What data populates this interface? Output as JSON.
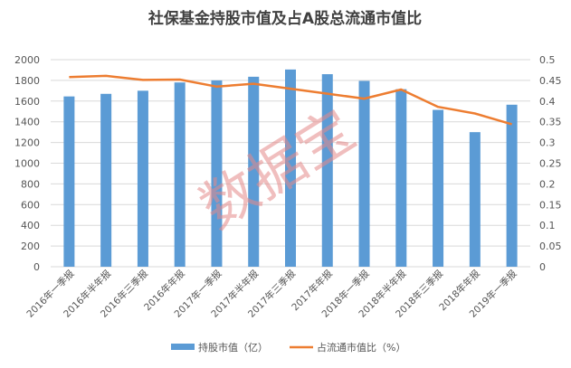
{
  "chart_data": {
    "type": "bar",
    "title": "社保基金持股市值及占A股总流通市值比",
    "categories": [
      "2016年一季报",
      "2016年半年报",
      "2016年三季报",
      "2016年年报",
      "2017年一季报",
      "2017年半年报",
      "2017年三季报",
      "2017年年报",
      "2018年一季报",
      "2018年半年报",
      "2018年三季报",
      "2018年年报",
      "2019年一季报"
    ],
    "series": [
      {
        "name": "持股市值（亿）",
        "type": "bar",
        "axis": "left",
        "color": "#5b9bd5",
        "values": [
          1645,
          1670,
          1700,
          1780,
          1800,
          1835,
          1905,
          1860,
          1795,
          1715,
          1515,
          1300,
          1565
        ]
      },
      {
        "name": "占流通市值比（%）",
        "type": "line",
        "axis": "right",
        "color": "#ed7d31",
        "values": [
          0.458,
          0.461,
          0.451,
          0.452,
          0.435,
          0.442,
          0.43,
          0.418,
          0.406,
          0.428,
          0.386,
          0.37,
          0.344
        ]
      }
    ],
    "y_left": {
      "min": 0,
      "max": 2000,
      "step": 200
    },
    "y_right": {
      "min": 0,
      "max": 0.5,
      "step": 0.05
    },
    "grid": true,
    "legend": "bottom",
    "watermark": "数据宝"
  }
}
